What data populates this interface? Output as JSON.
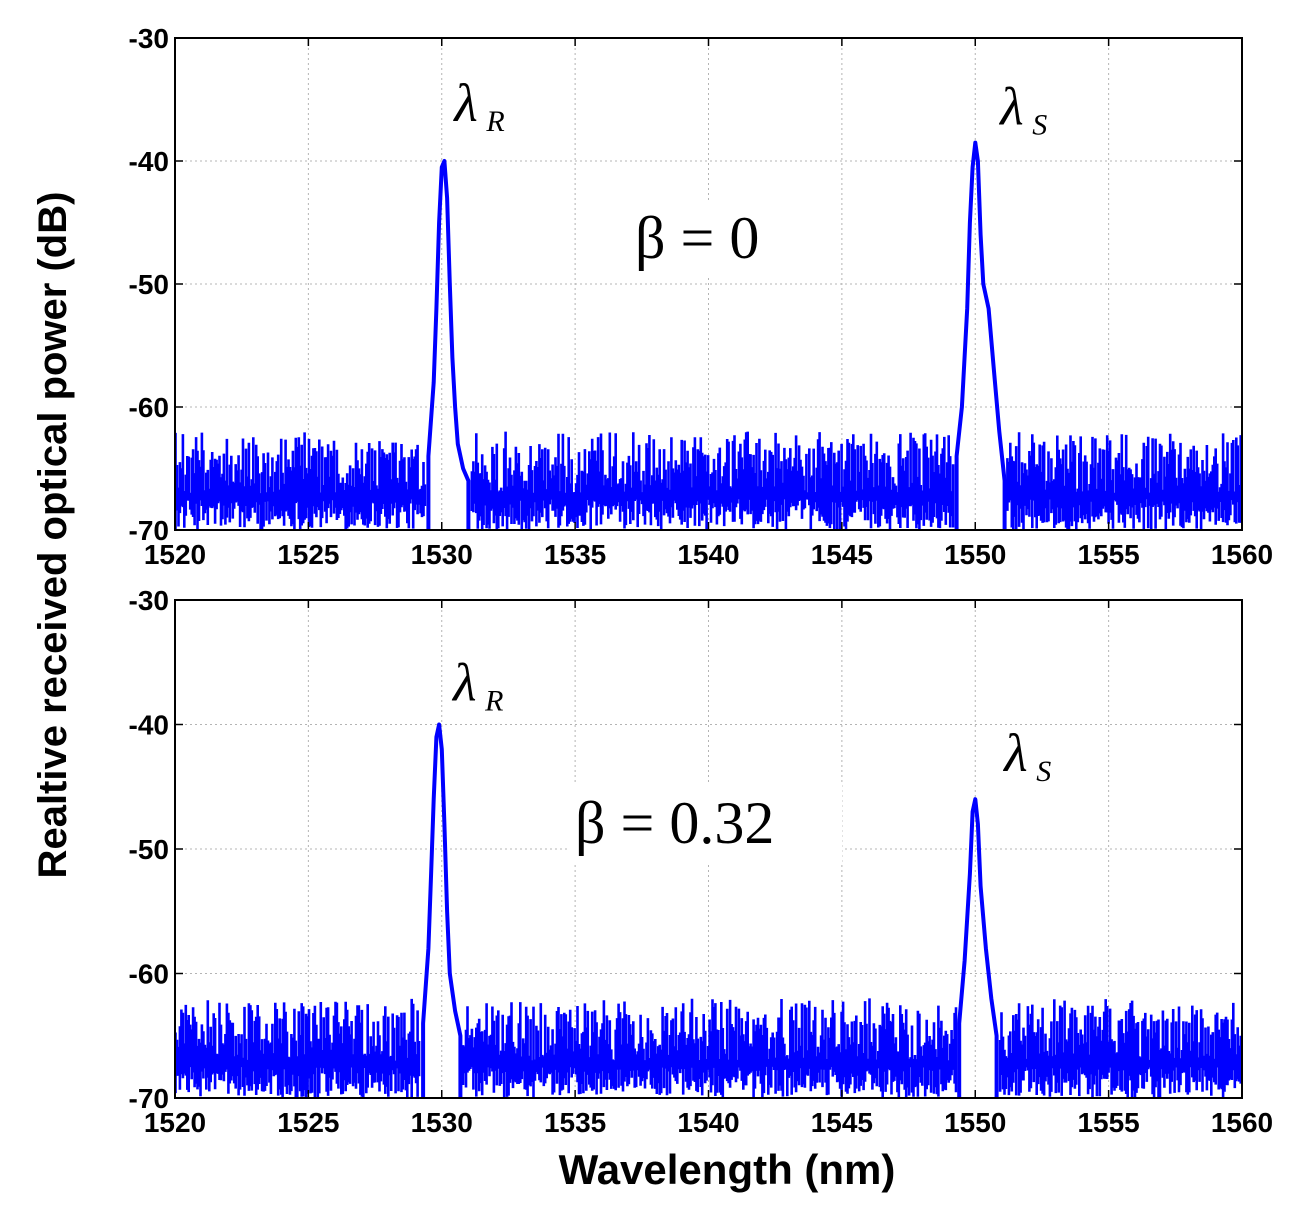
{
  "chart_data": [
    {
      "type": "line",
      "panel": "top",
      "xlabel": "",
      "ylabel": "",
      "xlim": [
        1520,
        1560
      ],
      "ylim": [
        -70,
        -30
      ],
      "xticks": [
        "1520",
        "1525",
        "1530",
        "1535",
        "1540",
        "1545",
        "1550",
        "1555",
        "1560"
      ],
      "yticks": [
        "-30",
        "-40",
        "-50",
        "-60",
        "-70"
      ],
      "grid": true,
      "annotation": "β = 0",
      "peaks": [
        {
          "label": "λ",
          "sub": "R",
          "x": 1530.1,
          "y": -40.0
        },
        {
          "label": "λ",
          "sub": "S",
          "x": 1550.0,
          "y": -38.5
        }
      ],
      "noise_floor": [
        -70,
        -62
      ],
      "series": [
        {
          "color": "#0000ff",
          "x": [
            1529.5,
            1529.7,
            1529.8,
            1529.9,
            1530.0,
            1530.1,
            1530.2,
            1530.3,
            1530.4,
            1530.5,
            1530.6,
            1530.8,
            1531.0,
            1549.3,
            1549.5,
            1549.7,
            1549.8,
            1549.9,
            1550.0,
            1550.1,
            1550.2,
            1550.3,
            1550.5,
            1550.7,
            1550.9,
            1551.1
          ],
          "y": [
            -64,
            -58,
            -52,
            -45,
            -40.5,
            -40.0,
            -43,
            -50,
            -56,
            -60,
            -63,
            -65,
            -66,
            -64,
            -60,
            -52,
            -45,
            -40.5,
            -38.5,
            -40,
            -46,
            -50,
            -52,
            -57,
            -62,
            -66
          ]
        }
      ]
    },
    {
      "type": "line",
      "panel": "bottom",
      "xlabel": "Wavelength (nm)",
      "ylabel": "Realtive received optical power (dB)",
      "xlim": [
        1520,
        1560
      ],
      "ylim": [
        -70,
        -30
      ],
      "xticks": [
        "1520",
        "1525",
        "1530",
        "1535",
        "1540",
        "1545",
        "1550",
        "1555",
        "1560"
      ],
      "yticks": [
        "-30",
        "-40",
        "-50",
        "-60",
        "-70"
      ],
      "grid": true,
      "annotation": "β = 0.32",
      "peaks": [
        {
          "label": "λ",
          "sub": "R",
          "x": 1529.9,
          "y": -40.0
        },
        {
          "label": "λ",
          "sub": "S",
          "x": 1550.0,
          "y": -46.0
        }
      ],
      "noise_floor": [
        -70,
        -62
      ],
      "series": [
        {
          "color": "#0000ff",
          "x": [
            1529.3,
            1529.5,
            1529.6,
            1529.7,
            1529.8,
            1529.9,
            1530.0,
            1530.1,
            1530.2,
            1530.3,
            1530.5,
            1530.7,
            1549.4,
            1549.6,
            1549.8,
            1549.9,
            1550.0,
            1550.1,
            1550.2,
            1550.4,
            1550.6,
            1550.8
          ],
          "y": [
            -64,
            -58,
            -52,
            -46,
            -41,
            -40,
            -42,
            -48,
            -55,
            -60,
            -63,
            -65,
            -64,
            -59,
            -52,
            -47,
            -46,
            -48,
            -53,
            -58,
            -62,
            -65
          ]
        }
      ]
    }
  ]
}
